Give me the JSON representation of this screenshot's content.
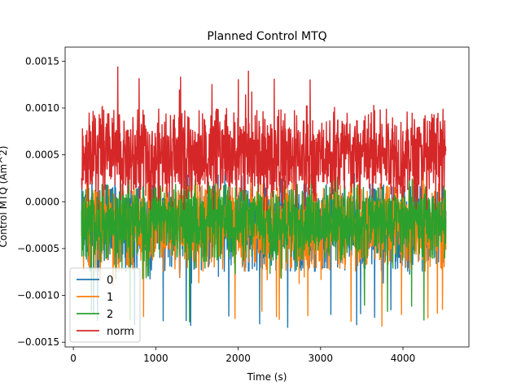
{
  "chart_data": {
    "type": "line",
    "title": "Planned Control MTQ",
    "xlabel": "Time (s)",
    "ylabel": "Control MTQ (Am^2)",
    "xlim": [
      -100,
      4800
    ],
    "ylim": [
      -0.00155,
      0.00165
    ],
    "xticks": [
      0,
      1000,
      2000,
      3000,
      4000
    ],
    "xtick_labels": [
      "0",
      "1000",
      "2000",
      "3000",
      "4000"
    ],
    "yticks": [
      -0.0015,
      -0.001,
      -0.0005,
      0.0,
      0.0005,
      0.001,
      0.0015
    ],
    "ytick_labels": [
      "−0.0015",
      "−0.0010",
      "−0.0005",
      "0.0000",
      "0.0005",
      "0.0010",
      "0.0015"
    ],
    "grid": false,
    "legend": "lower-left",
    "x_range": [
      100,
      4520
    ],
    "series": [
      {
        "name": "0",
        "color": "#1f77b4",
        "center": -0.00018,
        "lo": -0.00075,
        "hi": 0.0002,
        "spike_min": -0.00135,
        "spike_max": 0.00035
      },
      {
        "name": "1",
        "color": "#ff7f0e",
        "center": -0.00018,
        "lo": -0.00075,
        "hi": 0.0002,
        "spike_min": -0.0014,
        "spike_max": 0.00035
      },
      {
        "name": "2",
        "color": "#2ca02c",
        "center": -0.00015,
        "lo": -0.00065,
        "hi": 0.0002,
        "spike_min": -0.00135,
        "spike_max": 0.00032
      },
      {
        "name": "norm",
        "color": "#d62728",
        "center": 0.00045,
        "lo": 0.0,
        "hi": 0.001,
        "spike_min": -0.0001,
        "spike_max": 0.00145
      }
    ]
  }
}
